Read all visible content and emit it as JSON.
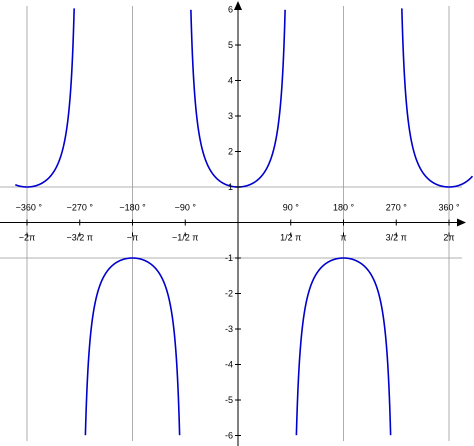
{
  "chart_data": {
    "type": "line",
    "title": "",
    "xlabel": "",
    "ylabel": "",
    "function": "sec(x)",
    "xlim": [
      -380,
      400
    ],
    "ylim": [
      -6,
      6
    ],
    "grid": false,
    "reference_lines": {
      "vertical_deg": [
        -360,
        -180,
        180,
        360
      ],
      "horizontal": [
        -1,
        1
      ]
    },
    "y_ticks": [
      {
        "value": 6,
        "label": "6"
      },
      {
        "value": 5,
        "label": "5"
      },
      {
        "value": 4,
        "label": "4"
      },
      {
        "value": 3,
        "label": "3"
      },
      {
        "value": 2,
        "label": "2"
      },
      {
        "value": 1,
        "label": "1"
      },
      {
        "value": -1,
        "label": "-1"
      },
      {
        "value": -2,
        "label": "-2"
      },
      {
        "value": -3,
        "label": "-3"
      },
      {
        "value": -4,
        "label": "-4"
      },
      {
        "value": -5,
        "label": "-5"
      },
      {
        "value": -6,
        "label": "-6"
      }
    ],
    "x_ticks_degrees": [
      {
        "value": -360,
        "label": "−360 °"
      },
      {
        "value": -270,
        "label": "−270 °"
      },
      {
        "value": -180,
        "label": "−180 °"
      },
      {
        "value": -90,
        "label": "−90 °"
      },
      {
        "value": 90,
        "label": "90 °"
      },
      {
        "value": 180,
        "label": "180 °"
      },
      {
        "value": 270,
        "label": "270 °"
      },
      {
        "value": 360,
        "label": "360 °"
      }
    ],
    "x_ticks_radians": [
      {
        "value": -360,
        "label": "−2π"
      },
      {
        "value": -270,
        "label": "−3/2 π"
      },
      {
        "value": -180,
        "label": "−π"
      },
      {
        "value": -90,
        "label": "−1/2 π"
      },
      {
        "value": 90,
        "label": "1/2 π"
      },
      {
        "value": 180,
        "label": "π"
      },
      {
        "value": 270,
        "label": "3/2 π"
      },
      {
        "value": 360,
        "label": "2π"
      }
    ],
    "series": [
      {
        "values_from": "sec(x)",
        "x_range_deg": [
          -380,
          400
        ],
        "color": "#0000cc"
      }
    ],
    "colors": {
      "curve": "#0000cc",
      "axis": "#000000",
      "reference": "#999999"
    }
  }
}
